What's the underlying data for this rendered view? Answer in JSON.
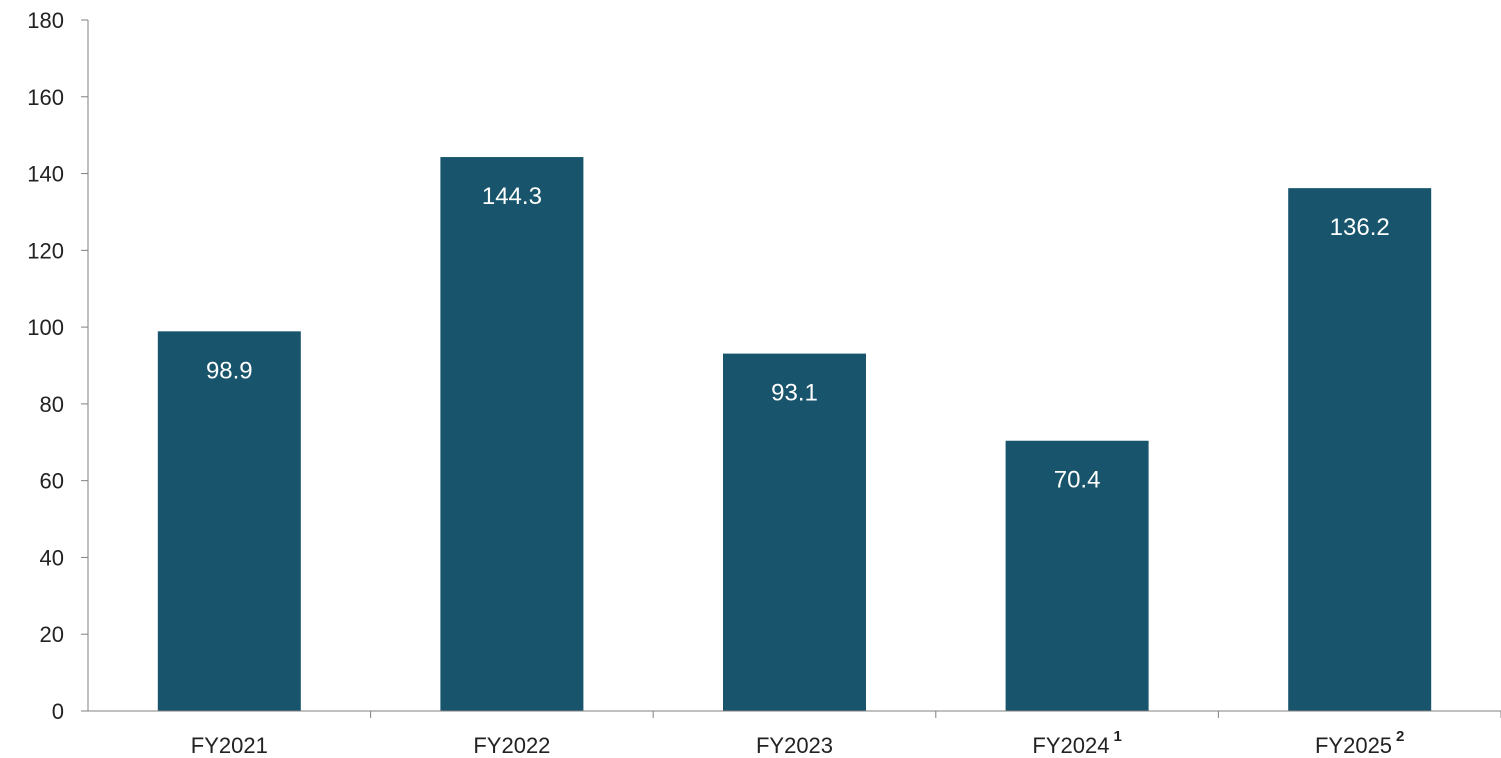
{
  "colors": {
    "bar": "#18556c",
    "axis": "#808080",
    "text": "#222222",
    "value_text": "#ffffff"
  },
  "chart_data": {
    "type": "bar",
    "title": "",
    "xlabel": "",
    "ylabel": "",
    "ylim": [
      0,
      180
    ],
    "yticks": [
      0,
      20,
      40,
      60,
      80,
      100,
      120,
      140,
      160,
      180
    ],
    "ytick_labels": [
      "0",
      "20",
      "40",
      "60",
      "80",
      "100",
      "120",
      "140",
      "160",
      "180"
    ],
    "grid": false,
    "legend": "none",
    "categories": [
      "FY2021",
      "FY2022",
      "FY2023",
      "FY2024",
      "FY2025"
    ],
    "category_footnotes": [
      "",
      "",
      "",
      "1",
      "2"
    ],
    "values": [
      98.9,
      144.3,
      93.1,
      70.4,
      136.2
    ],
    "value_labels": [
      "98.9",
      "144.3",
      "93.1",
      "70.4",
      "136.2"
    ]
  }
}
